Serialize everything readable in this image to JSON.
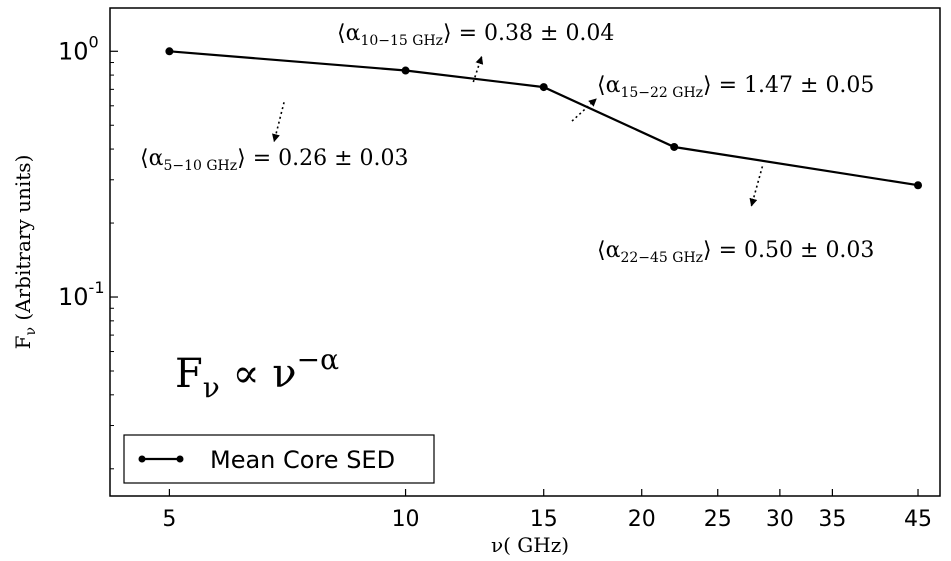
{
  "chart_data": {
    "type": "line",
    "xscale": "log",
    "yscale": "log",
    "xlim": [
      4.2,
      48
    ],
    "ylim": [
      0.0155,
      1.5
    ],
    "xlabel": "ν( GHz)",
    "ylabel": "F_ν (Arbitrary units)",
    "x_ticks": [
      5,
      10,
      15,
      20,
      25,
      30,
      35,
      45
    ],
    "x_tick_labels": [
      "5",
      "10",
      "15",
      "20",
      "25",
      "30",
      "35",
      "45"
    ],
    "y_ticks": [
      {
        "value": 1.0,
        "base": "10",
        "exp": "0"
      },
      {
        "value": 0.1,
        "base": "10",
        "exp": "-1"
      }
    ],
    "series": [
      {
        "name": "Mean Core SED",
        "x": [
          5,
          10,
          15,
          22,
          45
        ],
        "y": [
          1.0,
          0.835,
          0.715,
          0.408,
          0.285
        ]
      }
    ],
    "legend": {
      "label": "Mean Core SED",
      "position": "lower-left"
    },
    "annotations": [
      {
        "sub": "5−10 GHz",
        "value": "0.26 ± 0.03",
        "arrow_from": [
          7.0,
          0.62
        ],
        "arrow_to": [
          6.8,
          0.43
        ]
      },
      {
        "sub": "10−15 GHz",
        "value": "0.38 ± 0.04",
        "arrow_from": [
          12.2,
          0.75
        ],
        "arrow_to": [
          12.5,
          0.95
        ]
      },
      {
        "sub": "15−22 GHz",
        "value": "1.47 ± 0.05",
        "arrow_from": [
          16.3,
          0.52
        ],
        "arrow_to": [
          17.5,
          0.64
        ]
      },
      {
        "sub": "22−45 GHz",
        "value": "0.50 ± 0.03",
        "arrow_from": [
          28.5,
          0.34
        ],
        "arrow_to": [
          27.6,
          0.235
        ]
      }
    ],
    "formula": "F_ν ∝ ν^(−α)",
    "grid": false
  }
}
